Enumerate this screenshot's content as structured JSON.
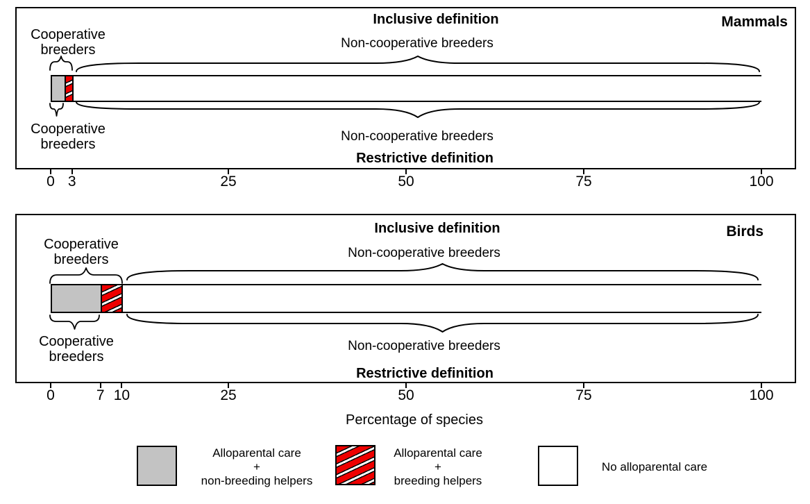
{
  "figure": {
    "panels": [
      {
        "title": "Mammals",
        "inclusive_label": "Inclusive definition",
        "restrictive_label": "Restrictive definition",
        "cooperative_breeders_label": "Cooperative\nbreeders",
        "non_cooperative_breeders_label": "Non-cooperative breeders",
        "axis_ticks": [
          0,
          3,
          25,
          50,
          75,
          100
        ]
      },
      {
        "title": "Birds",
        "inclusive_label": "Inclusive definition",
        "restrictive_label": "Restrictive definition",
        "cooperative_breeders_label": "Cooperative\nbreeders",
        "non_cooperative_breeders_label": "Non-cooperative breeders",
        "axis_ticks": [
          0,
          7,
          10,
          25,
          50,
          75,
          100
        ]
      }
    ],
    "x_axis_label": "Percentage of species",
    "legend": {
      "items": [
        {
          "swatch": "gray-solid-square",
          "label": "Alloparental care\n+\nnon-breeding helpers"
        },
        {
          "swatch": "red-white-hatched-square",
          "label": "Alloparental care\n+\nbreeding helpers"
        },
        {
          "swatch": "white-square",
          "label": "No alloparental care"
        }
      ]
    },
    "colors": {
      "gray_fill": "#c3c3c3",
      "red_fill": "#ee0000",
      "white_fill": "#ffffff",
      "line": "#000000"
    }
  },
  "chart_data": {
    "type": "bar",
    "orientation": "horizontal",
    "stacked": true,
    "title": "",
    "xlabel": "Percentage of species",
    "xlim": [
      0,
      100
    ],
    "grid": false,
    "legend_position": "bottom",
    "categories": [
      "Mammals",
      "Birds"
    ],
    "series": [
      {
        "name": "Alloparental care + non-breeding helpers",
        "values": [
          2,
          7
        ],
        "fill": "#c3c3c3",
        "hatch": "none"
      },
      {
        "name": "Alloparental care + breeding helpers",
        "values": [
          1,
          3
        ],
        "fill": "#ee0000",
        "hatch": "white-diagonal"
      },
      {
        "name": "No alloparental care",
        "values": [
          97,
          90
        ],
        "fill": "#ffffff",
        "hatch": "none"
      }
    ],
    "x_ticks": [
      [
        0,
        3,
        25,
        50,
        75,
        100
      ],
      [
        0,
        7,
        10,
        25,
        50,
        75,
        100
      ]
    ],
    "annotations": {
      "inclusive_definition_cooperative_pct": [
        3,
        10
      ],
      "restrictive_definition_cooperative_pct": [
        2,
        7
      ],
      "brace_labels": [
        "Cooperative breeders",
        "Non-cooperative breeders"
      ]
    }
  }
}
